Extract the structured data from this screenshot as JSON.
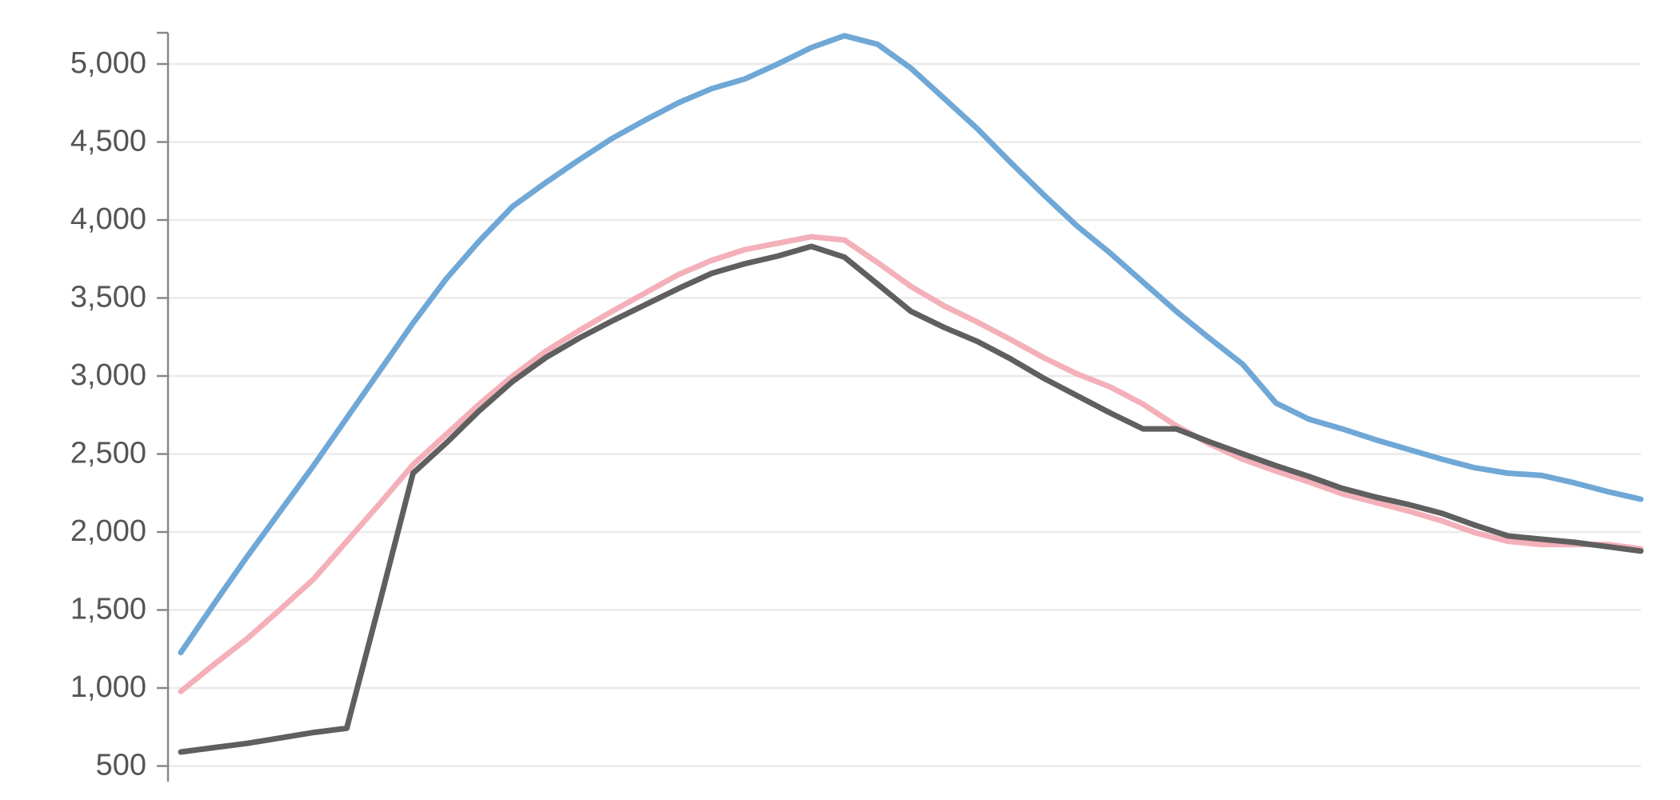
{
  "chart_data": {
    "type": "line",
    "ylim": [
      400,
      5200
    ],
    "yticks": [
      500,
      {
        "value": 1000,
        "label": "1,000"
      },
      {
        "value": 1500,
        "label": "1,500"
      },
      {
        "value": 2000,
        "label": "2,000"
      },
      {
        "value": 2500,
        "label": "2,500"
      },
      {
        "value": 3000,
        "label": "3,000"
      },
      {
        "value": 3500,
        "label": "3,500"
      },
      {
        "value": 4000,
        "label": "4,000"
      },
      {
        "value": 4500,
        "label": "4,500"
      },
      {
        "value": 5000,
        "label": "5,000"
      }
    ],
    "grid": true,
    "series": [
      {
        "color": "#6fa8d6",
        "values": [
          1227,
          1539,
          1843,
          2134,
          2425,
          2730,
          3035,
          3339,
          3623,
          3866,
          4087,
          4240,
          4385,
          4523,
          4641,
          4752,
          4842,
          4904,
          5001,
          5105,
          5181,
          5126,
          4974,
          4780,
          4586,
          4371,
          4163,
          3963,
          3789,
          3602,
          3415,
          3242,
          3076,
          2827,
          2723,
          2661,
          2592,
          2529,
          2467,
          2412,
          2377,
          2363,
          2315,
          2259,
          2210
        ]
      },
      {
        "color": "#f4b0b9",
        "values": [
          978,
          1151,
          1317,
          1504,
          1698,
          1940,
          2183,
          2432,
          2626,
          2820,
          3000,
          3159,
          3291,
          3415,
          3533,
          3651,
          3741,
          3810,
          3852,
          3893,
          3872,
          3727,
          3575,
          3450,
          3346,
          3235,
          3118,
          3014,
          2931,
          2820,
          2681,
          2564,
          2467,
          2391,
          2321,
          2245,
          2190,
          2134,
          2072,
          1996,
          1940,
          1920,
          1920,
          1920,
          1892
        ]
      },
      {
        "color": "#5f5f5f",
        "values": [
          590,
          618,
          645,
          680,
          715,
          742,
          1553,
          2377,
          2571,
          2778,
          2965,
          3118,
          3242,
          3353,
          3457,
          3561,
          3658,
          3720,
          3769,
          3831,
          3762,
          3589,
          3415,
          3312,
          3222,
          3111,
          2986,
          2875,
          2764,
          2661,
          2661,
          2578,
          2501,
          2425,
          2356,
          2280,
          2224,
          2176,
          2120,
          2044,
          1975,
          1954,
          1934,
          1906,
          1878
        ]
      }
    ]
  }
}
